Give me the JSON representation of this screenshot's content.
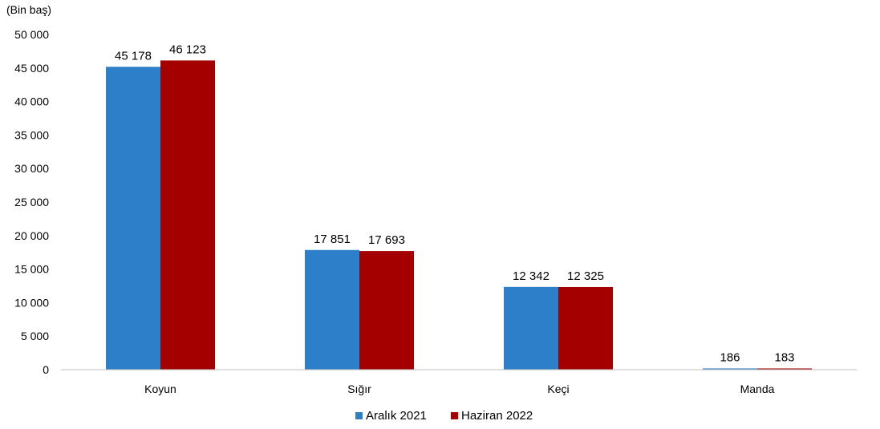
{
  "chart_data": {
    "type": "bar",
    "unit_label": "(Bin baş)",
    "categories": [
      "Koyun",
      "Sığır",
      "Keçi",
      "Manda"
    ],
    "series": [
      {
        "name": "Aralık 2021",
        "color": "#2E7FC9",
        "values": [
          45178,
          17851,
          12342,
          186
        ],
        "labels": [
          "45 178",
          "17 851",
          "12 342",
          "186"
        ]
      },
      {
        "name": "Haziran 2022",
        "color": "#A50000",
        "values": [
          46123,
          17693,
          12325,
          183
        ],
        "labels": [
          "46 123",
          "17 693",
          "12 325",
          "183"
        ]
      }
    ],
    "ylim": [
      0,
      50000
    ],
    "yticks": [
      0,
      5000,
      10000,
      15000,
      20000,
      25000,
      30000,
      35000,
      40000,
      45000,
      50000
    ],
    "ytick_labels": [
      "0",
      "5 000",
      "10 000",
      "15 000",
      "20 000",
      "25 000",
      "30 000",
      "35 000",
      "40 000",
      "45 000",
      "50 000"
    ],
    "grid": false,
    "legend": "bottom"
  }
}
